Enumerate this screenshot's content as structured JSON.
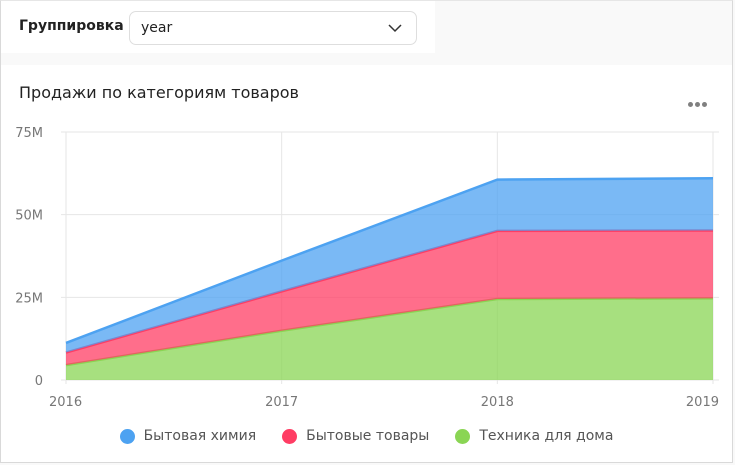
{
  "filter": {
    "label": "Группировка",
    "value": "year"
  },
  "card": {
    "title": "Продажи по категориям товаров",
    "menu_icon": "more-horizontal-icon"
  },
  "chart_data": {
    "type": "area",
    "stacked": true,
    "title": "Продажи по категориям товаров",
    "categories": [
      "2016",
      "2017",
      "2018",
      "2019"
    ],
    "y_ticks": [
      "0",
      "25M",
      "50M",
      "75M"
    ],
    "ylim": [
      0,
      75000000
    ],
    "grid": true,
    "legend_position": "bottom",
    "series": [
      {
        "name": "Техника для дома",
        "color": "#8ad554",
        "values": [
          4500000,
          14900000,
          24500000,
          24700000
        ]
      },
      {
        "name": "Бытовые товары",
        "color": "#ff3d64",
        "values": [
          3800000,
          11900000,
          20600000,
          20500000
        ]
      },
      {
        "name": "Бытовая химия",
        "color": "#4da2f1",
        "values": [
          2900000,
          9300000,
          15500000,
          15800000
        ]
      }
    ],
    "legend_order": [
      2,
      1,
      0
    ]
  }
}
